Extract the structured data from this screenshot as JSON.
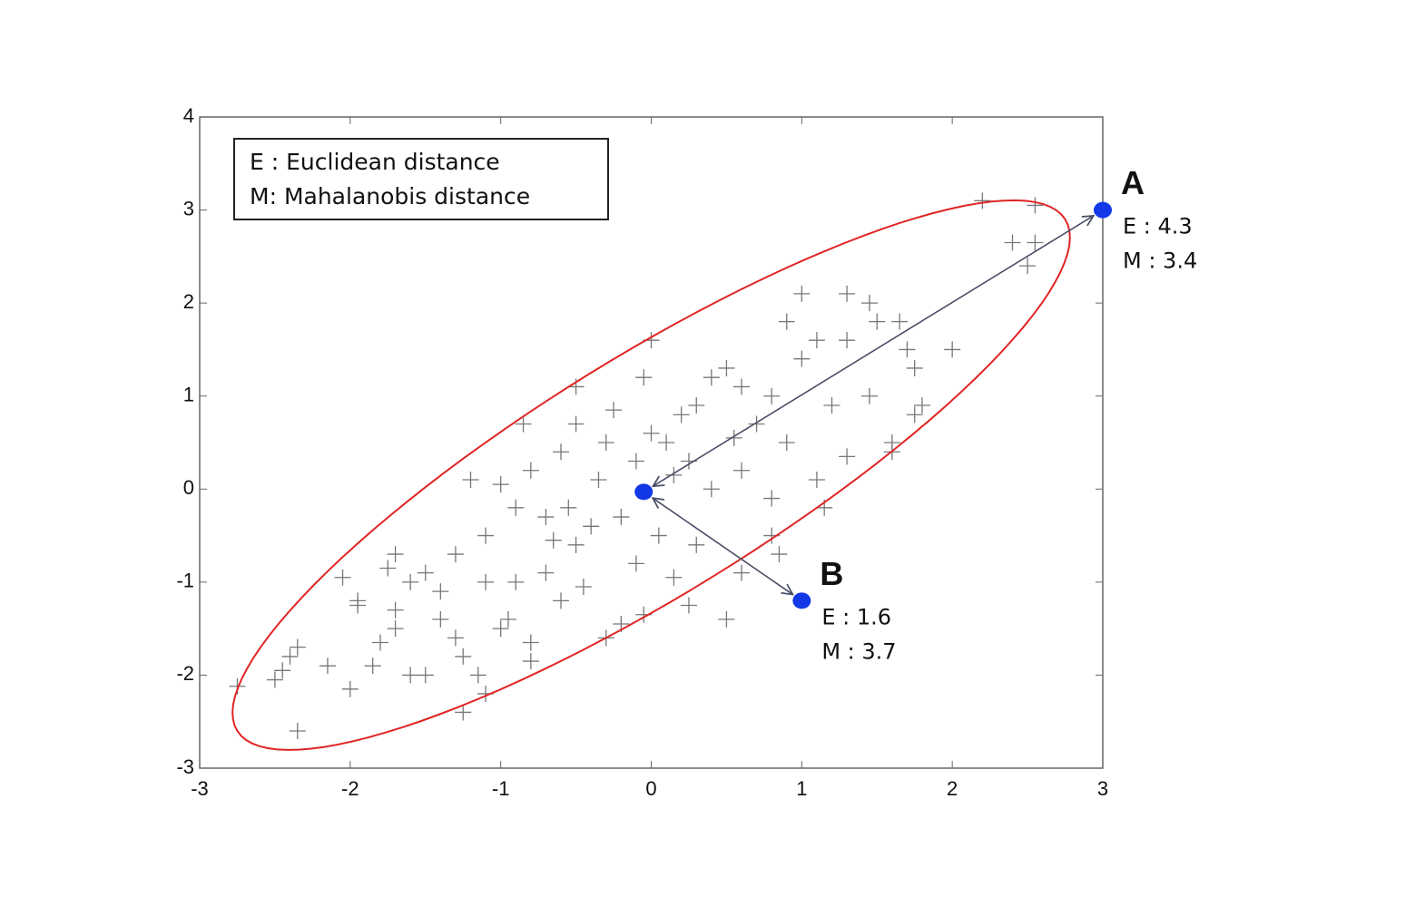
{
  "chart_data": {
    "type": "scatter",
    "xlim": [
      -3,
      3
    ],
    "xticks": [
      -3,
      -2,
      -1,
      0,
      1,
      2,
      3
    ],
    "ylim": [
      -3,
      4
    ],
    "yticks": [
      -3,
      -2,
      -1,
      0,
      1,
      2,
      3,
      4
    ],
    "legend": [
      "E : Euclidean distance",
      "M: Mahalanobis distance"
    ],
    "marker_color": "#777777",
    "point_color": "#1238e8",
    "ellipse_color": "#e02424",
    "arrow_color": "#4a4f66",
    "points": {
      "x": [
        -2.75,
        -2.35,
        -2.5,
        -2.4,
        -2.35,
        -2.45,
        -2.05,
        -1.95,
        -2.0,
        -1.8,
        -1.75,
        -1.7,
        -1.7,
        -1.6,
        -1.5,
        -1.85,
        -2.15,
        -1.25,
        -1.1,
        -1.15,
        -1.25,
        -1.3,
        -1.0,
        -0.8,
        -0.8,
        -0.95,
        -0.6,
        -0.3,
        -0.2,
        -0.05,
        0.25,
        0.5,
        0.85,
        0.8,
        0.6,
        0.15,
        0.3,
        -0.1,
        -0.4,
        -0.5,
        -0.7,
        -0.9,
        -1.1,
        -1.3,
        -1.5,
        -1.4,
        -1.6,
        -1.2,
        -1.0,
        -0.8,
        -0.6,
        -0.85,
        -0.5,
        -0.3,
        -0.1,
        0.1,
        0.2,
        0.4,
        0.5,
        0.6,
        0.8,
        1.0,
        1.1,
        1.3,
        0.9,
        1.0,
        1.3,
        1.45,
        1.5,
        1.65,
        1.7,
        1.75,
        2.0,
        1.8,
        1.75,
        1.6,
        1.6,
        1.3,
        1.1,
        1.15,
        0.8,
        0.6,
        0.4,
        2.2,
        2.55,
        2.4,
        2.55,
        2.5,
        0.0,
        -0.5,
        -0.05,
        0.3,
        0.55,
        0.7,
        -0.35,
        -0.55,
        -0.2,
        0.05,
        -0.7,
        -0.9,
        -1.1,
        -0.45,
        0.25,
        0.9,
        1.2,
        1.45,
        -1.7,
        -1.95,
        -1.4,
        0.0,
        -0.25,
        0.15,
        -0.65
      ],
      "y": [
        -2.12,
        -2.6,
        -2.05,
        -1.8,
        -1.7,
        -1.95,
        -0.95,
        -1.2,
        -2.15,
        -1.65,
        -0.85,
        -0.7,
        -1.5,
        -2.0,
        -2.0,
        -1.9,
        -1.9,
        -2.4,
        -2.2,
        -2.0,
        -1.8,
        -1.6,
        -1.5,
        -1.85,
        -1.65,
        -1.4,
        -1.2,
        -1.6,
        -1.45,
        -1.35,
        -1.25,
        -1.4,
        -0.7,
        -0.5,
        -0.9,
        -0.95,
        -0.6,
        -0.8,
        -0.4,
        -0.6,
        -0.3,
        -0.2,
        -0.5,
        -0.7,
        -0.9,
        -1.4,
        -1.0,
        0.1,
        0.05,
        0.2,
        0.4,
        0.7,
        0.7,
        0.5,
        0.3,
        0.5,
        0.8,
        1.2,
        1.3,
        1.1,
        1.0,
        1.4,
        1.6,
        1.6,
        1.8,
        2.1,
        2.1,
        2.0,
        1.8,
        1.8,
        1.5,
        1.3,
        1.5,
        0.9,
        0.8,
        0.5,
        0.4,
        0.35,
        0.1,
        -0.2,
        -0.1,
        0.2,
        0.0,
        3.1,
        3.05,
        2.65,
        2.65,
        2.4,
        1.6,
        1.1,
        1.2,
        0.9,
        0.55,
        0.7,
        0.1,
        -0.2,
        -0.3,
        -0.5,
        -0.9,
        -1.0,
        -1.0,
        -1.05,
        0.3,
        0.5,
        0.9,
        1.0,
        -1.3,
        -1.25,
        -1.1,
        0.6,
        0.85,
        0.15,
        -0.55
      ]
    },
    "ellipse": {
      "center": [
        0,
        0.15
      ],
      "axis1": [
        2.75,
        2.75
      ],
      "axis2": [
        -0.42,
        1.08
      ]
    },
    "mean_point": {
      "x": -0.05,
      "y": -0.03
    },
    "labeled_points": [
      {
        "label": "A",
        "x": 3,
        "y": 3,
        "annotations": [
          "E : 4.3",
          "M : 3.4"
        ]
      },
      {
        "label": "B",
        "x": 1,
        "y": -1.2,
        "annotations": [
          "E : 1.6",
          "M : 3.7"
        ]
      }
    ]
  }
}
